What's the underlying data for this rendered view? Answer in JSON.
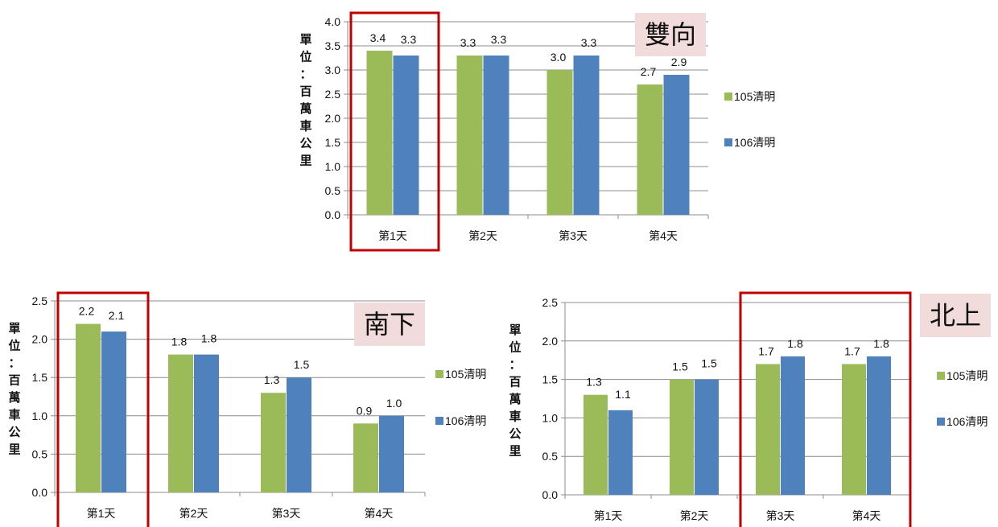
{
  "series_colors": {
    "105": "#9BBB59",
    "106": "#4F81BD"
  },
  "highlight_color": "#C00000",
  "tag_bg": "#F2DCDB",
  "chart_data": [
    {
      "id": "both",
      "type": "bar",
      "title": "雙向",
      "ylabel": "單位：百萬車公里",
      "categories": [
        "第1天",
        "第2天",
        "第3天",
        "第4天"
      ],
      "ylim": [
        0,
        4.0
      ],
      "yticks": [
        "0.0",
        "0.5",
        "1.0",
        "1.5",
        "2.0",
        "2.5",
        "3.0",
        "3.5",
        "4.0"
      ],
      "series": [
        {
          "name": "105清明",
          "values": [
            3.4,
            3.3,
            3.0,
            2.7
          ],
          "labels": [
            "3.4",
            "3.3",
            "3.0",
            "2.7"
          ]
        },
        {
          "name": "106清明",
          "values": [
            3.3,
            3.3,
            3.3,
            2.9
          ],
          "labels": [
            "3.3",
            "3.3",
            "3.3",
            "2.9"
          ]
        }
      ],
      "highlight": [
        0
      ],
      "legend_position": "right",
      "grid": true
    },
    {
      "id": "south",
      "type": "bar",
      "title": "南下",
      "ylabel": "單位：百萬車公里",
      "categories": [
        "第1天",
        "第2天",
        "第3天",
        "第4天"
      ],
      "ylim": [
        0,
        2.5
      ],
      "yticks": [
        "0.0",
        "0.5",
        "1.0",
        "1.5",
        "2.0",
        "2.5"
      ],
      "series": [
        {
          "name": "105清明",
          "values": [
            2.2,
            1.8,
            1.3,
            0.9
          ],
          "labels": [
            "2.2",
            "1.8",
            "1.3",
            "0.9"
          ]
        },
        {
          "name": "106清明",
          "values": [
            2.1,
            1.8,
            1.5,
            1.0
          ],
          "labels": [
            "2.1",
            "1.8",
            "1.5",
            "1.0"
          ]
        }
      ],
      "highlight": [
        0
      ],
      "legend_position": "right",
      "grid": true
    },
    {
      "id": "north",
      "type": "bar",
      "title": "北上",
      "ylabel": "單位：百萬車公里",
      "categories": [
        "第1天",
        "第2天",
        "第3天",
        "第4天"
      ],
      "ylim": [
        0,
        2.5
      ],
      "yticks": [
        "0.0",
        "0.5",
        "1.0",
        "1.5",
        "2.0",
        "2.5"
      ],
      "series": [
        {
          "name": "105清明",
          "values": [
            1.3,
            1.5,
            1.7,
            1.7
          ],
          "labels": [
            "1.3",
            "1.5",
            "1.7",
            "1.7"
          ]
        },
        {
          "name": "106清明",
          "values": [
            1.1,
            1.5,
            1.8,
            1.8
          ],
          "labels": [
            "1.1",
            "1.5",
            "1.8",
            "1.8"
          ]
        }
      ],
      "highlight": [
        2,
        3
      ],
      "legend_position": "right",
      "grid": true
    }
  ]
}
